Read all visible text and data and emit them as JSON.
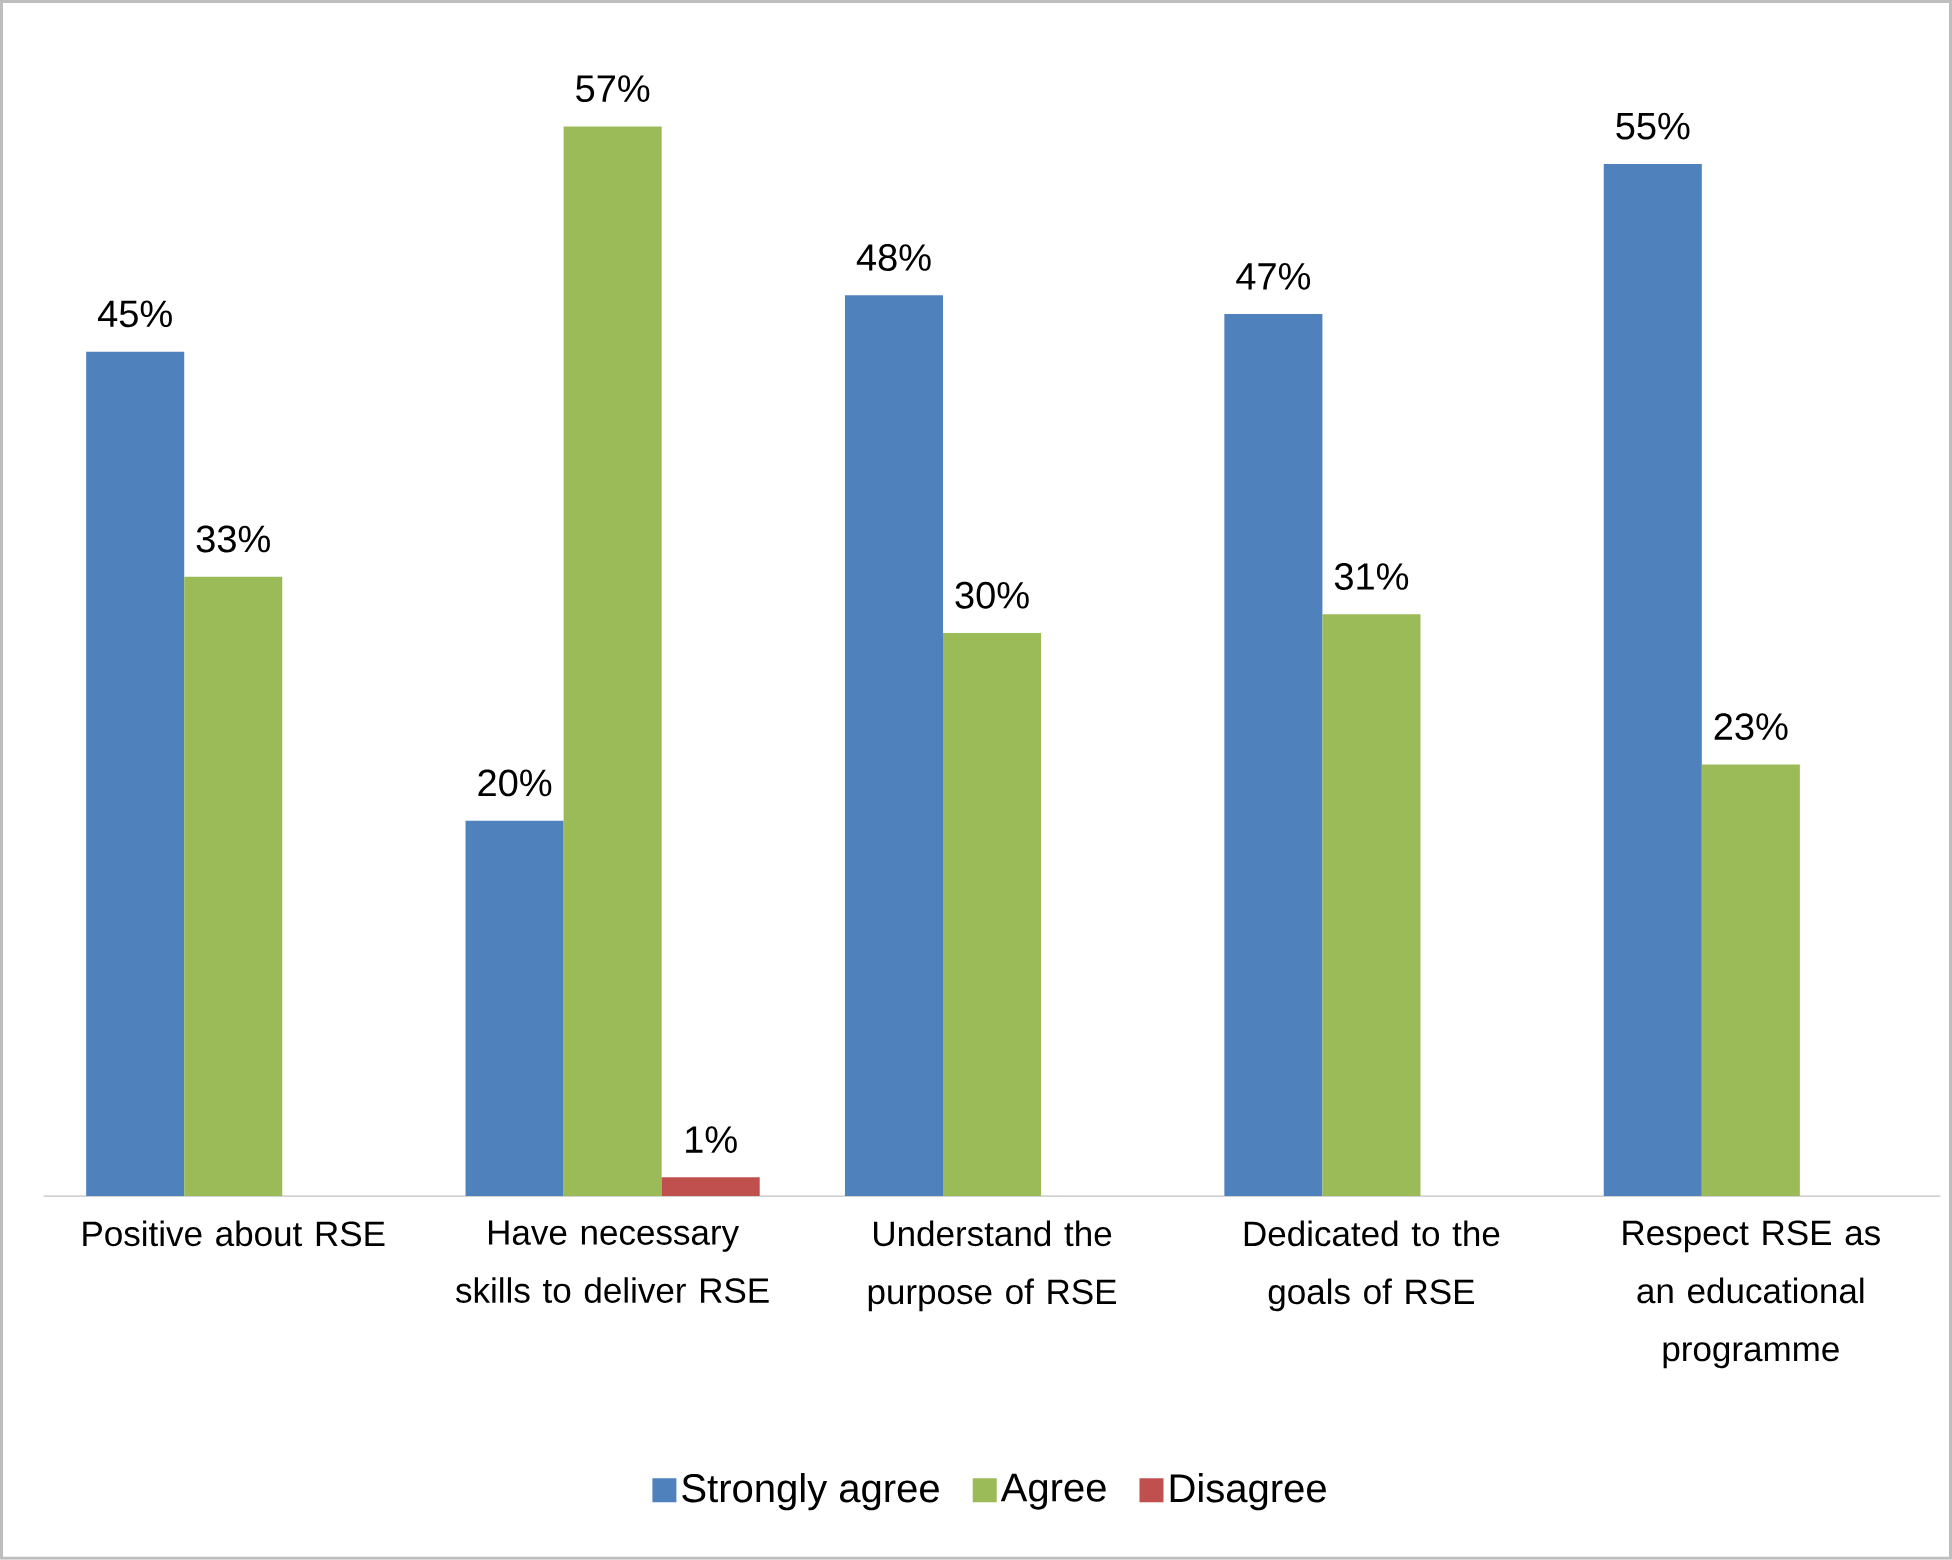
{
  "chart_data": {
    "type": "bar",
    "categories": [
      "Positive about RSE",
      "Have necessary skills to deliver RSE",
      "Understand the purpose of RSE",
      "Dedicated to the goals of RSE",
      "Respect RSE as an educational programme"
    ],
    "series": [
      {
        "name": "Strongly agree",
        "color": "#4f81bd",
        "values": [
          45,
          20,
          48,
          47,
          55
        ],
        "value_labels": [
          "45%",
          "20%",
          "48%",
          "47%",
          "55%"
        ]
      },
      {
        "name": "Agree",
        "color": "#9bbb59",
        "values": [
          33,
          57,
          30,
          31,
          23
        ],
        "value_labels": [
          "33%",
          "57%",
          "30%",
          "31%",
          "23%"
        ]
      },
      {
        "name": "Disagree",
        "color": "#c0504d",
        "values": [
          null,
          1,
          null,
          null,
          null
        ],
        "value_labels": [
          null,
          "1%",
          null,
          null,
          null
        ]
      }
    ],
    "legend": "bottom"
  }
}
